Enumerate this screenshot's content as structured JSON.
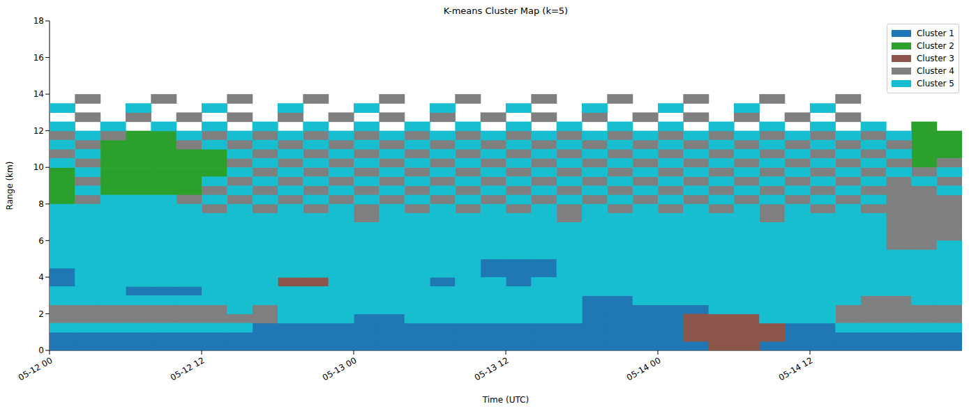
{
  "chart_data": {
    "type": "heatmap",
    "title": "K-means Cluster Map (k=5)",
    "x_label": "Time (UTC)",
    "y_label": "Range (km)",
    "x": [
      1,
      3,
      5,
      7,
      9,
      11,
      13,
      15,
      17,
      19,
      21,
      23,
      25,
      27,
      29,
      31,
      33,
      35,
      37,
      39,
      41,
      43,
      45,
      47,
      49,
      51,
      53,
      55,
      57,
      59,
      61,
      63,
      65,
      67,
      69,
      71
    ],
    "y": [
      0.25,
      0.75,
      1.25,
      1.75,
      2.25,
      2.75,
      3.25,
      3.75,
      4.25,
      4.75,
      5.25,
      5.75,
      6.25,
      6.75,
      7.25,
      7.75,
      8.25,
      8.75,
      9.25,
      9.75,
      10.25,
      10.75,
      11.25,
      11.75,
      12.25,
      12.75,
      13.25,
      13.75
    ],
    "cells": [
      [
        1,
        1,
        1,
        1,
        1,
        1,
        1,
        1,
        1,
        1,
        1,
        1,
        1,
        1,
        1,
        1,
        1,
        1,
        1,
        1,
        1,
        1,
        1,
        1,
        1,
        1,
        3,
        3,
        1,
        1,
        1,
        1,
        1,
        1,
        1,
        1
      ],
      [
        1,
        1,
        1,
        1,
        1,
        1,
        1,
        1,
        1,
        1,
        1,
        1,
        1,
        1,
        1,
        1,
        1,
        1,
        1,
        1,
        1,
        1,
        1,
        1,
        1,
        3,
        3,
        3,
        3,
        1,
        1,
        1,
        1,
        1,
        1,
        1
      ],
      [
        5,
        5,
        5,
        5,
        5,
        5,
        5,
        5,
        1,
        1,
        1,
        1,
        1,
        1,
        1,
        1,
        1,
        1,
        1,
        1,
        1,
        1,
        1,
        1,
        1,
        3,
        3,
        3,
        3,
        1,
        1,
        5,
        5,
        5,
        5,
        5
      ],
      [
        4,
        4,
        4,
        4,
        4,
        4,
        4,
        4,
        4,
        5,
        5,
        5,
        1,
        1,
        5,
        5,
        5,
        5,
        5,
        5,
        5,
        1,
        1,
        1,
        1,
        3,
        3,
        3,
        5,
        5,
        5,
        4,
        4,
        4,
        4,
        4
      ],
      [
        4,
        4,
        4,
        4,
        4,
        4,
        4,
        5,
        4,
        5,
        5,
        5,
        5,
        5,
        5,
        5,
        5,
        5,
        5,
        5,
        5,
        1,
        1,
        1,
        1,
        1,
        5,
        5,
        5,
        5,
        5,
        4,
        4,
        4,
        4,
        4
      ],
      [
        5,
        5,
        5,
        5,
        5,
        5,
        5,
        5,
        5,
        5,
        5,
        5,
        5,
        5,
        5,
        5,
        5,
        5,
        5,
        5,
        5,
        1,
        1,
        5,
        5,
        5,
        5,
        5,
        5,
        5,
        5,
        5,
        4,
        4,
        5,
        5
      ],
      [
        5,
        5,
        5,
        1,
        1,
        1,
        5,
        5,
        5,
        5,
        5,
        5,
        5,
        5,
        5,
        5,
        5,
        5,
        5,
        5,
        5,
        5,
        5,
        5,
        5,
        5,
        5,
        5,
        5,
        5,
        5,
        5,
        5,
        5,
        5,
        5
      ],
      [
        1,
        5,
        5,
        5,
        5,
        5,
        5,
        5,
        5,
        3,
        3,
        5,
        5,
        5,
        5,
        1,
        5,
        5,
        1,
        5,
        5,
        5,
        5,
        5,
        5,
        5,
        5,
        5,
        5,
        5,
        5,
        5,
        5,
        5,
        5,
        5
      ],
      [
        1,
        5,
        5,
        5,
        5,
        5,
        5,
        5,
        5,
        5,
        5,
        5,
        5,
        5,
        5,
        5,
        5,
        1,
        1,
        1,
        5,
        5,
        5,
        5,
        5,
        5,
        5,
        5,
        5,
        5,
        5,
        5,
        5,
        5,
        5,
        5
      ],
      [
        5,
        5,
        5,
        5,
        5,
        5,
        5,
        5,
        5,
        5,
        5,
        5,
        5,
        5,
        5,
        5,
        5,
        1,
        1,
        1,
        5,
        5,
        5,
        5,
        5,
        5,
        5,
        5,
        5,
        5,
        5,
        5,
        5,
        5,
        5,
        5
      ],
      [
        5,
        5,
        5,
        5,
        5,
        5,
        5,
        5,
        5,
        5,
        5,
        5,
        5,
        5,
        5,
        5,
        5,
        5,
        5,
        5,
        5,
        5,
        5,
        5,
        5,
        5,
        5,
        5,
        5,
        5,
        5,
        5,
        5,
        5,
        5,
        5
      ],
      [
        5,
        5,
        5,
        5,
        5,
        5,
        5,
        5,
        5,
        5,
        5,
        5,
        5,
        5,
        5,
        5,
        5,
        5,
        5,
        5,
        5,
        5,
        5,
        5,
        5,
        5,
        5,
        5,
        5,
        5,
        5,
        5,
        5,
        4,
        4,
        5
      ],
      [
        5,
        5,
        5,
        5,
        5,
        5,
        5,
        5,
        5,
        5,
        5,
        5,
        5,
        5,
        5,
        5,
        5,
        5,
        5,
        5,
        5,
        5,
        5,
        5,
        5,
        5,
        5,
        5,
        5,
        5,
        5,
        5,
        5,
        4,
        4,
        4
      ],
      [
        5,
        5,
        5,
        5,
        5,
        5,
        5,
        5,
        5,
        5,
        5,
        5,
        5,
        5,
        5,
        5,
        5,
        5,
        5,
        5,
        5,
        5,
        5,
        5,
        5,
        5,
        5,
        5,
        5,
        5,
        5,
        5,
        5,
        4,
        4,
        4
      ],
      [
        5,
        5,
        5,
        5,
        5,
        5,
        5,
        5,
        5,
        5,
        5,
        5,
        4,
        5,
        5,
        5,
        5,
        5,
        5,
        5,
        4,
        5,
        5,
        5,
        5,
        5,
        5,
        5,
        4,
        5,
        5,
        5,
        5,
        4,
        4,
        4
      ],
      [
        5,
        5,
        5,
        5,
        5,
        5,
        4,
        5,
        4,
        5,
        4,
        5,
        4,
        5,
        4,
        5,
        4,
        5,
        4,
        5,
        4,
        5,
        4,
        5,
        4,
        5,
        4,
        5,
        4,
        5,
        4,
        5,
        4,
        4,
        4,
        4
      ],
      [
        2,
        4,
        5,
        5,
        5,
        4,
        5,
        4,
        5,
        4,
        5,
        4,
        5,
        4,
        5,
        4,
        5,
        4,
        5,
        4,
        5,
        4,
        5,
        4,
        5,
        4,
        5,
        4,
        5,
        4,
        5,
        4,
        5,
        4,
        4,
        4
      ],
      [
        2,
        5,
        2,
        2,
        2,
        2,
        4,
        5,
        4,
        5,
        4,
        5,
        4,
        5,
        4,
        5,
        4,
        5,
        4,
        5,
        4,
        5,
        4,
        5,
        4,
        5,
        4,
        5,
        4,
        5,
        4,
        5,
        4,
        4,
        4,
        5
      ],
      [
        2,
        4,
        2,
        2,
        2,
        2,
        5,
        4,
        5,
        4,
        5,
        4,
        5,
        4,
        5,
        4,
        5,
        4,
        5,
        4,
        5,
        4,
        5,
        4,
        5,
        4,
        5,
        4,
        5,
        4,
        5,
        4,
        5,
        4,
        5,
        4
      ],
      [
        2,
        5,
        2,
        2,
        2,
        2,
        2,
        5,
        4,
        5,
        4,
        5,
        4,
        5,
        4,
        5,
        4,
        5,
        4,
        5,
        4,
        5,
        4,
        5,
        4,
        5,
        4,
        5,
        4,
        5,
        4,
        5,
        4,
        5,
        4,
        5
      ],
      [
        5,
        4,
        2,
        2,
        2,
        2,
        2,
        4,
        5,
        4,
        5,
        4,
        5,
        4,
        5,
        4,
        5,
        4,
        5,
        4,
        5,
        4,
        5,
        4,
        5,
        4,
        5,
        4,
        5,
        4,
        5,
        4,
        5,
        4,
        2,
        4
      ],
      [
        4,
        5,
        2,
        2,
        2,
        2,
        2,
        5,
        4,
        5,
        4,
        5,
        4,
        5,
        4,
        5,
        4,
        5,
        4,
        5,
        4,
        5,
        4,
        5,
        4,
        5,
        4,
        5,
        4,
        5,
        4,
        5,
        4,
        5,
        2,
        2
      ],
      [
        5,
        4,
        2,
        2,
        2,
        4,
        5,
        4,
        5,
        4,
        5,
        4,
        5,
        4,
        5,
        4,
        5,
        4,
        5,
        4,
        5,
        4,
        5,
        4,
        5,
        4,
        5,
        4,
        5,
        4,
        5,
        4,
        5,
        4,
        2,
        2
      ],
      [
        4,
        5,
        4,
        2,
        2,
        5,
        4,
        5,
        4,
        5,
        4,
        5,
        4,
        5,
        4,
        5,
        4,
        5,
        4,
        5,
        4,
        5,
        4,
        5,
        4,
        5,
        4,
        5,
        4,
        5,
        4,
        5,
        4,
        5,
        2,
        2
      ],
      [
        5,
        null,
        5,
        null,
        5,
        null,
        5,
        null,
        5,
        null,
        5,
        null,
        5,
        null,
        5,
        null,
        5,
        null,
        5,
        null,
        5,
        null,
        5,
        null,
        5,
        null,
        5,
        null,
        5,
        null,
        5,
        null,
        5,
        null,
        2,
        null
      ],
      [
        null,
        4,
        null,
        4,
        null,
        4,
        null,
        4,
        null,
        4,
        null,
        4,
        null,
        4,
        null,
        4,
        null,
        4,
        null,
        4,
        null,
        4,
        null,
        4,
        null,
        4,
        null,
        4,
        null,
        4,
        null,
        4,
        null,
        null,
        null,
        null
      ],
      [
        5,
        null,
        null,
        5,
        null,
        null,
        5,
        null,
        null,
        5,
        null,
        null,
        5,
        null,
        null,
        5,
        null,
        null,
        5,
        null,
        null,
        5,
        null,
        null,
        5,
        null,
        null,
        5,
        null,
        null,
        5,
        null,
        null,
        null,
        null,
        null
      ],
      [
        null,
        4,
        null,
        null,
        4,
        null,
        null,
        4,
        null,
        null,
        4,
        null,
        null,
        4,
        null,
        null,
        4,
        null,
        null,
        4,
        null,
        null,
        4,
        null,
        null,
        4,
        null,
        null,
        4,
        null,
        null,
        4,
        null,
        null,
        null,
        null
      ]
    ],
    "series": [
      {
        "name": "Cluster 1",
        "color": "#1f77b4"
      },
      {
        "name": "Cluster 2",
        "color": "#2ca02c"
      },
      {
        "name": "Cluster 3",
        "color": "#8c564b"
      },
      {
        "name": "Cluster 4",
        "color": "#7f7f7f"
      },
      {
        "name": "Cluster 5",
        "color": "#17becf"
      }
    ],
    "xlim": [
      0,
      72
    ],
    "ylim": [
      0,
      18
    ],
    "xticks": [
      {
        "value": 0,
        "label": "05-12 00"
      },
      {
        "value": 12,
        "label": "05-12 12"
      },
      {
        "value": 24,
        "label": "05-13 00"
      },
      {
        "value": 36,
        "label": "05-13 12"
      },
      {
        "value": 48,
        "label": "05-14 00"
      },
      {
        "value": 60,
        "label": "05-14 12"
      }
    ],
    "yticks": [
      0,
      2,
      4,
      6,
      8,
      10,
      12,
      14,
      16,
      18
    ],
    "legend": "upper right"
  }
}
